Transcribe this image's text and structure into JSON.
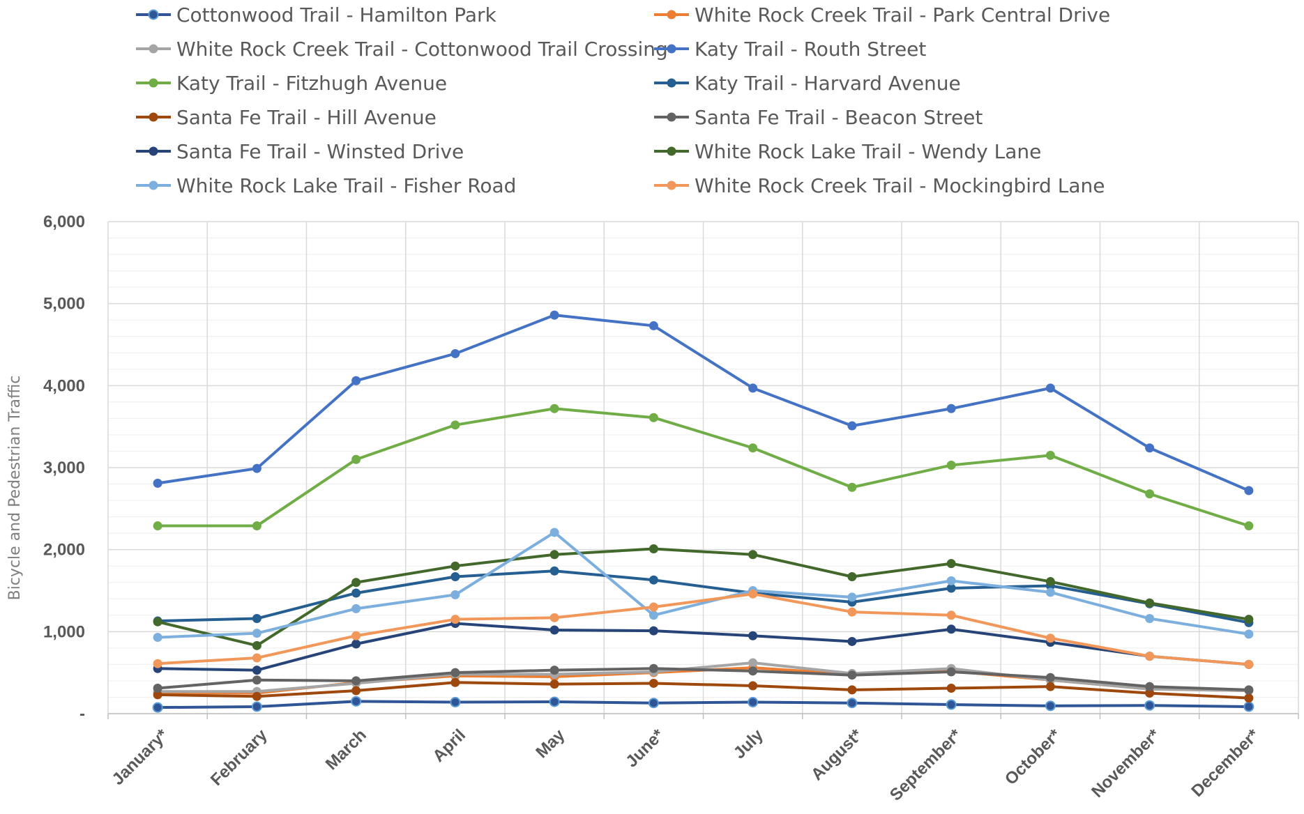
{
  "chart_data": {
    "type": "line",
    "title": "",
    "xlabel": "",
    "ylabel": "Bicycle and Pedestrian Traffic",
    "ylim": [
      0,
      6000
    ],
    "yticks": [
      0,
      1000,
      2000,
      3000,
      4000,
      5000,
      6000
    ],
    "ytick_labels": [
      "-",
      "1,000",
      "2,000",
      "3,000",
      "4,000",
      "5,000",
      "6,000"
    ],
    "categories": [
      "January*",
      "February",
      "March",
      "April",
      "May",
      "June*",
      "July",
      "August*",
      "September*",
      "October*",
      "November*",
      "December*"
    ],
    "grid": true,
    "legend_position": "top",
    "series": [
      {
        "name": "Cottonwood Trail - Hamilton Park",
        "color": "#2F5597",
        "values": [
          75,
          85,
          150,
          140,
          145,
          130,
          140,
          130,
          110,
          95,
          100,
          85
        ]
      },
      {
        "name": "White Rock Creek Trail - Park Central Drive",
        "color": "#ED7D31",
        "values": [
          260,
          250,
          380,
          460,
          450,
          500,
          560,
          480,
          520,
          410,
          300,
          280
        ]
      },
      {
        "name": "White Rock Creek Trail - Cottonwood Trail Crossing",
        "color": "#A5A5A5",
        "values": [
          270,
          270,
          370,
          480,
          480,
          510,
          620,
          490,
          550,
          410,
          300,
          280
        ]
      },
      {
        "name": "Katy Trail - Routh Street",
        "color": "#4472C4",
        "values": [
          2810,
          2990,
          4060,
          4390,
          4860,
          4730,
          3970,
          3510,
          3720,
          3970,
          3240,
          2720
        ]
      },
      {
        "name": "Katy Trail - Fitzhugh Avenue",
        "color": "#70AD47",
        "values": [
          2290,
          2290,
          3100,
          3520,
          3720,
          3610,
          3240,
          2760,
          3030,
          3150,
          2680,
          2290
        ]
      },
      {
        "name": "Katy Trail - Harvard Avenue",
        "color": "#255E91",
        "values": [
          1130,
          1160,
          1470,
          1670,
          1740,
          1630,
          1470,
          1360,
          1530,
          1560,
          1340,
          1110
        ]
      },
      {
        "name": "Santa Fe Trail - Hill Avenue",
        "color": "#9E480E",
        "values": [
          230,
          210,
          280,
          380,
          360,
          370,
          340,
          290,
          310,
          330,
          250,
          190
        ]
      },
      {
        "name": "Santa Fe Trail - Beacon Street",
        "color": "#636363",
        "values": [
          310,
          410,
          400,
          500,
          530,
          550,
          520,
          470,
          510,
          440,
          330,
          290
        ]
      },
      {
        "name": "Santa Fe Trail - Winsted Drive",
        "color": "#264478",
        "values": [
          550,
          530,
          850,
          1100,
          1020,
          1010,
          950,
          880,
          1030,
          870,
          700,
          600
        ]
      },
      {
        "name": "White Rock Lake Trail - Wendy Lane",
        "color": "#43682B",
        "values": [
          1120,
          830,
          1600,
          1800,
          1940,
          2010,
          1940,
          1670,
          1830,
          1610,
          1350,
          1150
        ]
      },
      {
        "name": "White Rock Lake Trail - Fisher Road",
        "color": "#7CAFDD",
        "values": [
          930,
          980,
          1280,
          1450,
          2210,
          1200,
          1500,
          1420,
          1620,
          1480,
          1160,
          970
        ]
      },
      {
        "name": "White Rock Creek Trail - Mockingbird Lane",
        "color": "#F1975A",
        "values": [
          610,
          680,
          950,
          1150,
          1170,
          1300,
          1460,
          1240,
          1200,
          920,
          700,
          600
        ]
      }
    ]
  }
}
